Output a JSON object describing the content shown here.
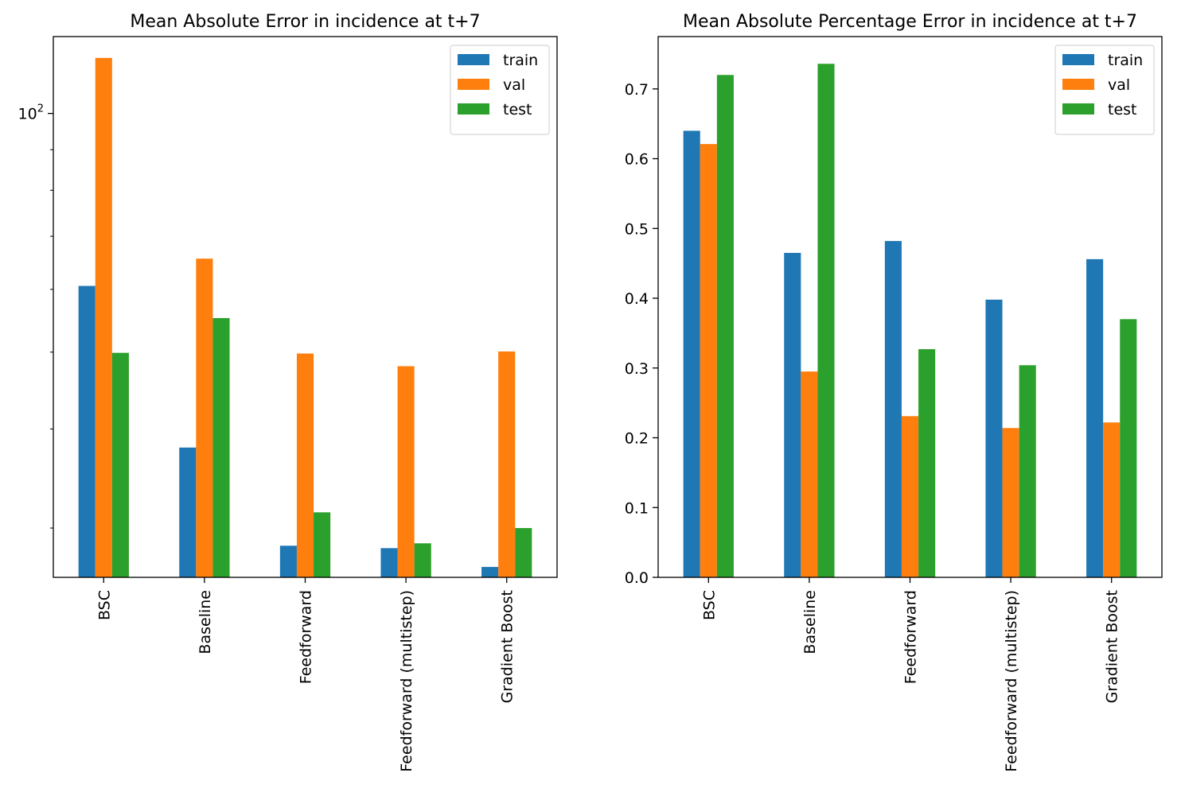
{
  "chart_data": [
    {
      "type": "bar",
      "title": "Mean Absolute Error in incidence at t+7",
      "xlabel": "",
      "ylabel": "",
      "yscale": "log",
      "ylim": [
        26,
        125
      ],
      "yticks_major": [
        {
          "value": 100,
          "base": "10",
          "exp": "2"
        }
      ],
      "yticks_minor": [
        30,
        40,
        50,
        60,
        70,
        80,
        90
      ],
      "categories": [
        "BSC",
        "Baseline",
        "Feedforward",
        "Feedforward (multistep)",
        "Gradient Boost"
      ],
      "series": [
        {
          "name": "train",
          "color": "#1f77b4",
          "values": [
            60.6,
            37.9,
            28.5,
            28.3,
            26.8
          ]
        },
        {
          "name": "val",
          "color": "#ff7f0e",
          "values": [
            117.5,
            65.6,
            49.8,
            48.0,
            50.1
          ]
        },
        {
          "name": "test",
          "color": "#2ca02c",
          "values": [
            49.9,
            55.2,
            31.4,
            28.7,
            30.0
          ]
        }
      ],
      "legend": {
        "position": "top-right",
        "entries": [
          "train",
          "val",
          "test"
        ]
      },
      "grid": false
    },
    {
      "type": "bar",
      "title": "Mean Absolute Percentage Error in incidence at t+7",
      "xlabel": "",
      "ylabel": "",
      "yscale": "linear",
      "ylim": [
        0.0,
        0.775
      ],
      "yticks": [
        0.0,
        0.1,
        0.2,
        0.3,
        0.4,
        0.5,
        0.6,
        0.7
      ],
      "ytick_labels": [
        "0.0",
        "0.1",
        "0.2",
        "0.3",
        "0.4",
        "0.5",
        "0.6",
        "0.7"
      ],
      "categories": [
        "BSC",
        "Baseline",
        "Feedforward",
        "Feedforward (multistep)",
        "Gradient Boost"
      ],
      "series": [
        {
          "name": "train",
          "color": "#1f77b4",
          "values": [
            0.64,
            0.465,
            0.482,
            0.398,
            0.456
          ]
        },
        {
          "name": "val",
          "color": "#ff7f0e",
          "values": [
            0.621,
            0.295,
            0.231,
            0.214,
            0.222
          ]
        },
        {
          "name": "test",
          "color": "#2ca02c",
          "values": [
            0.72,
            0.736,
            0.327,
            0.304,
            0.37
          ]
        }
      ],
      "legend": {
        "position": "top-right",
        "entries": [
          "train",
          "val",
          "test"
        ]
      },
      "grid": false
    }
  ]
}
